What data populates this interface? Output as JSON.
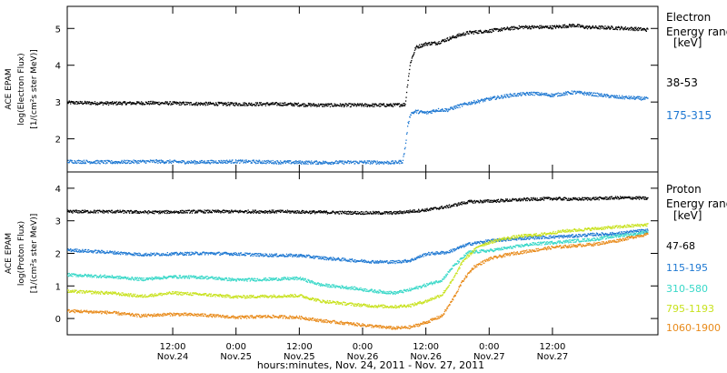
{
  "chart_data": [
    {
      "type": "line",
      "panel": "electron",
      "ylabel_lines": [
        "ACE EPAM",
        "log(Electron Flux)",
        "[1/(cm²s ster MeV)]"
      ],
      "ylim": [
        1.1,
        5.6
      ],
      "yticks": [
        2,
        3,
        4,
        5
      ],
      "grid": false,
      "legend_title_lines": [
        "Electron",
        "Energy range",
        "[keV]"
      ],
      "x_unit": "hours since Nov. 24 00:00",
      "series": [
        {
          "name": "38-53",
          "color": "#000000",
          "points": [
            [
              -8,
              3.0
            ],
            [
              0,
              2.98
            ],
            [
              8,
              2.99
            ],
            [
              16,
              2.97
            ],
            [
              24,
              2.96
            ],
            [
              32,
              2.96
            ],
            [
              40,
              2.93
            ],
            [
              48,
              2.93
            ],
            [
              54,
              2.93
            ],
            [
              56,
              2.95
            ],
            [
              56.5,
              3.6
            ],
            [
              57,
              4.1
            ],
            [
              57.5,
              4.3
            ],
            [
              58,
              4.5
            ],
            [
              60,
              4.6
            ],
            [
              62,
              4.62
            ],
            [
              64,
              4.72
            ],
            [
              66,
              4.82
            ],
            [
              68,
              4.9
            ],
            [
              72,
              4.95
            ],
            [
              78,
              5.05
            ],
            [
              84,
              5.05
            ],
            [
              88,
              5.1
            ],
            [
              90,
              5.05
            ],
            [
              96,
              5.03
            ],
            [
              100,
              5.0
            ],
            [
              102,
              4.98
            ]
          ]
        },
        {
          "name": "175-315",
          "color": "#1e78d2",
          "points": [
            [
              -8,
              1.4
            ],
            [
              0,
              1.38
            ],
            [
              8,
              1.4
            ],
            [
              16,
              1.38
            ],
            [
              24,
              1.4
            ],
            [
              32,
              1.38
            ],
            [
              40,
              1.37
            ],
            [
              48,
              1.38
            ],
            [
              54,
              1.37
            ],
            [
              55.5,
              1.4
            ],
            [
              56,
              1.8
            ],
            [
              56.5,
              2.4
            ],
            [
              57,
              2.7
            ],
            [
              58,
              2.76
            ],
            [
              60,
              2.72
            ],
            [
              62,
              2.8
            ],
            [
              64,
              2.8
            ],
            [
              66,
              2.9
            ],
            [
              68,
              2.98
            ],
            [
              72,
              3.1
            ],
            [
              76,
              3.2
            ],
            [
              80,
              3.25
            ],
            [
              84,
              3.2
            ],
            [
              88,
              3.28
            ],
            [
              92,
              3.22
            ],
            [
              96,
              3.15
            ],
            [
              100,
              3.12
            ],
            [
              102,
              3.1
            ]
          ]
        }
      ]
    },
    {
      "type": "line",
      "panel": "proton",
      "ylabel_lines": [
        "ACE EPAM",
        "log(Proton Flux)",
        "[1/(cm²s ster MeV)]"
      ],
      "ylim": [
        -0.5,
        4.5
      ],
      "yticks": [
        0,
        1,
        2,
        3,
        4
      ],
      "grid": false,
      "legend_title_lines": [
        "Proton",
        "Energy range",
        "[keV]"
      ],
      "x_unit": "hours since Nov. 24 00:00",
      "series": [
        {
          "name": "47-68",
          "color": "#000000",
          "points": [
            [
              -8,
              3.3
            ],
            [
              0,
              3.3
            ],
            [
              8,
              3.28
            ],
            [
              16,
              3.3
            ],
            [
              24,
              3.3
            ],
            [
              32,
              3.3
            ],
            [
              40,
              3.28
            ],
            [
              48,
              3.26
            ],
            [
              54,
              3.26
            ],
            [
              60,
              3.35
            ],
            [
              64,
              3.45
            ],
            [
              68,
              3.6
            ],
            [
              72,
              3.62
            ],
            [
              76,
              3.65
            ],
            [
              80,
              3.68
            ],
            [
              84,
              3.7
            ],
            [
              88,
              3.68
            ],
            [
              92,
              3.7
            ],
            [
              96,
              3.72
            ],
            [
              100,
              3.72
            ],
            [
              102,
              3.7
            ]
          ]
        },
        {
          "name": "115-195",
          "color": "#1e78d2",
          "points": [
            [
              -8,
              2.12
            ],
            [
              0,
              2.05
            ],
            [
              6,
              1.98
            ],
            [
              12,
              2.0
            ],
            [
              18,
              2.02
            ],
            [
              24,
              2.0
            ],
            [
              30,
              1.96
            ],
            [
              36,
              1.95
            ],
            [
              40,
              1.88
            ],
            [
              46,
              1.8
            ],
            [
              50,
              1.76
            ],
            [
              54,
              1.75
            ],
            [
              57,
              1.8
            ],
            [
              60,
              2.0
            ],
            [
              64,
              2.05
            ],
            [
              68,
              2.3
            ],
            [
              72,
              2.4
            ],
            [
              76,
              2.45
            ],
            [
              80,
              2.5
            ],
            [
              84,
              2.52
            ],
            [
              88,
              2.55
            ],
            [
              92,
              2.6
            ],
            [
              96,
              2.62
            ],
            [
              100,
              2.7
            ],
            [
              102,
              2.72
            ]
          ]
        },
        {
          "name": "310-580",
          "color": "#38d8c8",
          "points": [
            [
              -8,
              1.36
            ],
            [
              0,
              1.3
            ],
            [
              6,
              1.22
            ],
            [
              12,
              1.3
            ],
            [
              18,
              1.28
            ],
            [
              24,
              1.2
            ],
            [
              30,
              1.22
            ],
            [
              36,
              1.25
            ],
            [
              40,
              1.05
            ],
            [
              46,
              0.95
            ],
            [
              50,
              0.86
            ],
            [
              54,
              0.8
            ],
            [
              57,
              0.9
            ],
            [
              60,
              1.05
            ],
            [
              63,
              1.2
            ],
            [
              65,
              1.6
            ],
            [
              68,
              2.05
            ],
            [
              72,
              2.1
            ],
            [
              76,
              2.2
            ],
            [
              80,
              2.3
            ],
            [
              84,
              2.35
            ],
            [
              88,
              2.4
            ],
            [
              92,
              2.45
            ],
            [
              96,
              2.55
            ],
            [
              100,
              2.62
            ],
            [
              102,
              2.68
            ]
          ]
        },
        {
          "name": "795-1193",
          "color": "#c8e21e",
          "points": [
            [
              -8,
              0.85
            ],
            [
              0,
              0.8
            ],
            [
              6,
              0.7
            ],
            [
              12,
              0.8
            ],
            [
              18,
              0.75
            ],
            [
              24,
              0.68
            ],
            [
              30,
              0.7
            ],
            [
              36,
              0.72
            ],
            [
              40,
              0.55
            ],
            [
              46,
              0.45
            ],
            [
              50,
              0.4
            ],
            [
              54,
              0.38
            ],
            [
              57,
              0.42
            ],
            [
              60,
              0.55
            ],
            [
              63,
              0.75
            ],
            [
              65,
              1.2
            ],
            [
              67,
              1.8
            ],
            [
              70,
              2.25
            ],
            [
              74,
              2.45
            ],
            [
              78,
              2.55
            ],
            [
              82,
              2.6
            ],
            [
              86,
              2.7
            ],
            [
              90,
              2.75
            ],
            [
              94,
              2.8
            ],
            [
              98,
              2.85
            ],
            [
              102,
              2.9
            ]
          ]
        },
        {
          "name": "1060-1900",
          "color": "#e88a1a",
          "points": [
            [
              -8,
              0.25
            ],
            [
              0,
              0.2
            ],
            [
              6,
              0.1
            ],
            [
              12,
              0.15
            ],
            [
              18,
              0.12
            ],
            [
              24,
              0.05
            ],
            [
              30,
              0.08
            ],
            [
              36,
              0.05
            ],
            [
              40,
              -0.05
            ],
            [
              46,
              -0.15
            ],
            [
              50,
              -0.22
            ],
            [
              54,
              -0.28
            ],
            [
              57,
              -0.25
            ],
            [
              60,
              -0.1
            ],
            [
              63,
              0.1
            ],
            [
              65,
              0.6
            ],
            [
              67,
              1.2
            ],
            [
              69,
              1.6
            ],
            [
              72,
              1.85
            ],
            [
              76,
              2.0
            ],
            [
              80,
              2.1
            ],
            [
              84,
              2.2
            ],
            [
              88,
              2.25
            ],
            [
              92,
              2.3
            ],
            [
              96,
              2.4
            ],
            [
              100,
              2.55
            ],
            [
              102,
              2.6
            ]
          ]
        }
      ]
    }
  ],
  "x_axis": {
    "range_hours": [
      -8,
      104
    ],
    "ticks": [
      {
        "h": 12,
        "time": "12:00",
        "date": "Nov.24"
      },
      {
        "h": 24,
        "time": "0:00",
        "date": "Nov.25"
      },
      {
        "h": 36,
        "time": "12:00",
        "date": "Nov.25"
      },
      {
        "h": 48,
        "time": "0:00",
        "date": "Nov.26"
      },
      {
        "h": 60,
        "time": "12:00",
        "date": "Nov.26"
      },
      {
        "h": 72,
        "time": "0:00",
        "date": "Nov.27"
      },
      {
        "h": 84,
        "time": "12:00",
        "date": "Nov.27"
      }
    ],
    "label": "hours:minutes, Nov. 24, 2011 - Nov. 27, 2011"
  }
}
